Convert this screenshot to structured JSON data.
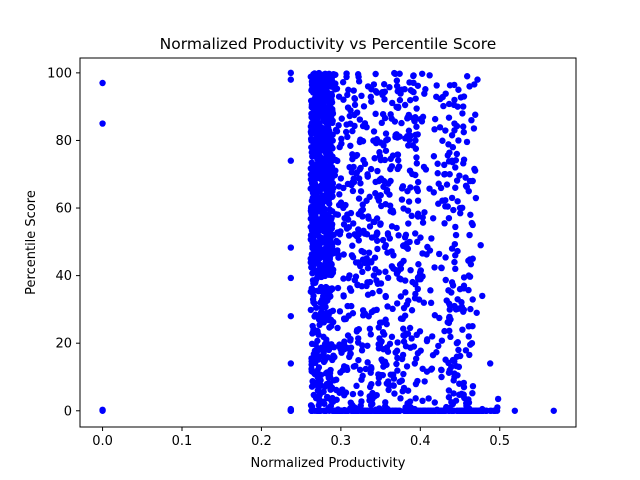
{
  "chart_data": {
    "type": "scatter",
    "title": "Normalized Productivity vs Percentile Score",
    "xlabel": "Normalized Productivity",
    "ylabel": "Percentile Score",
    "xlim": [
      -0.0284,
      0.596
    ],
    "ylim": [
      -4.8,
      104.4
    ],
    "xticks": [
      0.0,
      0.1,
      0.2,
      0.3,
      0.4,
      0.5
    ],
    "xtick_labels": [
      "0.0",
      "0.1",
      "0.2",
      "0.3",
      "0.4",
      "0.5"
    ],
    "yticks": [
      0,
      20,
      40,
      60,
      80,
      100
    ],
    "ytick_labels": [
      "0",
      "20",
      "40",
      "60",
      "80",
      "100"
    ],
    "grid": false,
    "legend": "none",
    "marker_color": "#0000ff",
    "series": [
      {
        "x": [
          0.0,
          0.0,
          0.0,
          0.0,
          0.237,
          0.237,
          0.237,
          0.237,
          0.237,
          0.237,
          0.237,
          0.237,
          0.237,
          0.237,
          0.237,
          0.519,
          0.568,
          0.498,
          0.497,
          0.488,
          0.478,
          0.476,
          0.471,
          0.465,
          0.461,
          0.455,
          0.478,
          0.463,
          0.459,
          0.472,
          0.462,
          0.455,
          0.448,
          0.443,
          0.466,
          0.461,
          0.457,
          0.466,
          0.462,
          0.466,
          0.461,
          0.444,
          0.45,
          0.445,
          0.461,
          0.453,
          0.448,
          0.443,
          0.455,
          0.452,
          0.449,
          0.45,
          0.447,
          0.444,
          0.44,
          0.448,
          0.443,
          0.453,
          0.447,
          0.443,
          0.445,
          0.44,
          0.443,
          0.438,
          0.446,
          0.441,
          0.437,
          0.447,
          0.443,
          0.439,
          0.446,
          0.442,
          0.436,
          0.445,
          0.441,
          0.436,
          0.444,
          0.44,
          0.436,
          0.446,
          0.441,
          0.437,
          0.444,
          0.44,
          0.436,
          0.443,
          0.439
        ],
        "y": [
          97.0,
          85.0,
          0.3,
          0.0,
          100.0,
          98.0,
          74.0,
          48.3,
          39.3,
          28.0,
          14.0,
          0.5,
          0.2,
          0.0,
          0.0,
          0.0,
          0.0,
          3.5,
          1.0,
          14.0,
          34.0,
          49.0,
          29.0,
          20.0,
          25.0,
          37.0,
          0.5,
          58.0,
          99.0,
          98.0,
          96.0,
          93.0,
          95.0,
          92.0,
          68.0,
          65.0,
          69.0,
          45.0,
          52.0,
          55.0,
          40.0,
          42.0,
          36.0,
          30.0,
          22.0,
          24.0,
          18.0,
          10.0,
          7.0,
          5.0,
          8.0,
          60.0,
          62.0,
          72.0,
          74.0,
          80.0,
          85.0,
          88.0,
          90.0,
          83.0,
          52.0,
          48.0,
          44.0,
          27.0,
          20.0,
          15.0,
          12.0,
          33.0,
          31.0,
          35.0,
          16.0,
          9.0,
          6.0,
          3.0,
          2.0,
          4.0,
          66.0,
          63.0,
          57.0,
          76.0,
          78.0,
          70.0,
          46.0,
          38.0,
          26.0,
          11.0,
          13.0
        ]
      }
    ]
  }
}
